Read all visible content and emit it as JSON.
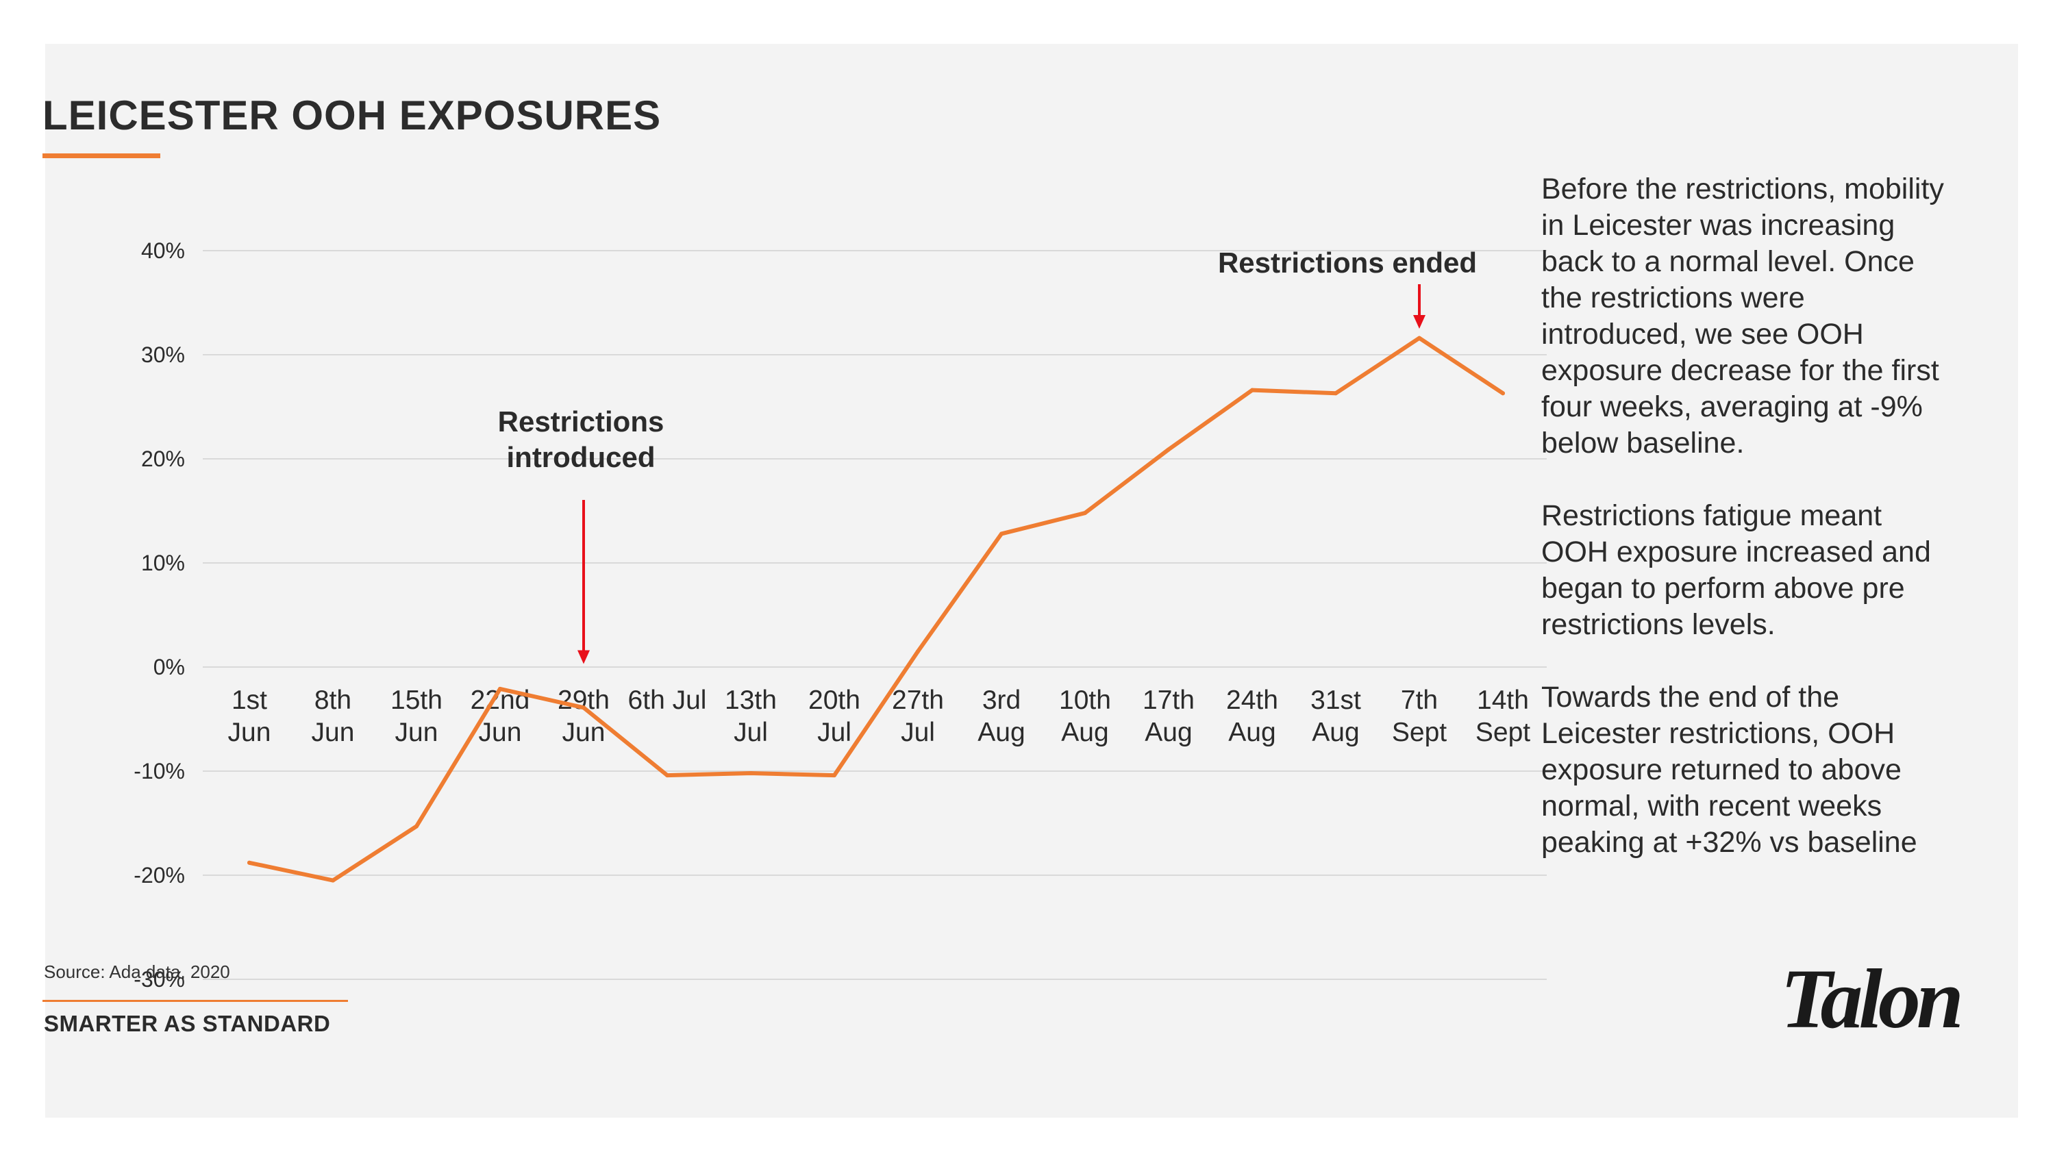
{
  "slide": {
    "title": "LEICESTER OOH EXPOSURES",
    "source": "Source: Ada data, 2020",
    "tagline": "SMARTER AS STANDARD",
    "logo_text": "Talon",
    "commentary": [
      "Before the restrictions, mobility in Leicester was increasing back to a normal level. Once the restrictions were introduced, we see OOH exposure decrease for the first four weeks, averaging at -9% below baseline.",
      "Restrictions fatigue meant OOH exposure increased and began to perform above pre restrictions levels.",
      "Towards the end of the Leicester restrictions, OOH exposure returned to above normal, with recent weeks peaking at +32% vs baseline"
    ]
  },
  "colors": {
    "line": "#ef7d32",
    "accent": "#ef7d32",
    "arrow": "#e8101a",
    "grid": "#d9d9d9",
    "background": "#f3f3f3",
    "text": "#2b2b2b"
  },
  "chart_data": {
    "type": "line",
    "title": "",
    "xlabel": "",
    "ylabel": "",
    "ylim": [
      -30,
      40
    ],
    "yticks": [
      "40%",
      "30%",
      "20%",
      "10%",
      "0%",
      "-10%",
      "-20%",
      "-30%"
    ],
    "ytick_values": [
      40,
      30,
      20,
      10,
      0,
      -10,
      -20,
      -30
    ],
    "grid": true,
    "legend": "none",
    "categories": [
      [
        "1st",
        "Jun"
      ],
      [
        "8th",
        "Jun"
      ],
      [
        "15th",
        "Jun"
      ],
      [
        "22nd",
        "Jun"
      ],
      [
        "29th",
        "Jun"
      ],
      [
        "6th Jul"
      ],
      [
        "13th",
        "Jul"
      ],
      [
        "20th",
        "Jul"
      ],
      [
        "27th",
        "Jul"
      ],
      [
        "3rd",
        "Aug"
      ],
      [
        "10th",
        "Aug"
      ],
      [
        "17th",
        "Aug"
      ],
      [
        "24th",
        "Aug"
      ],
      [
        "31st",
        "Aug"
      ],
      [
        "7th",
        "Sept"
      ],
      [
        "14th",
        "Sept"
      ]
    ],
    "series": [
      {
        "values": [
          -18.8,
          -20.5,
          -15.3,
          -2.1,
          -3.9,
          -10.4,
          -10.2,
          -10.4,
          1.5,
          12.8,
          14.8,
          20.9,
          26.6,
          26.3,
          31.6,
          26.3
        ]
      }
    ],
    "annotations": [
      {
        "text": [
          "Restrictions",
          "introduced"
        ],
        "category_index": 4,
        "arrow_end_value": 0.3
      },
      {
        "text": [
          "Restrictions ended"
        ],
        "category_index": 14,
        "arrow_end_value": 32.5
      }
    ]
  }
}
